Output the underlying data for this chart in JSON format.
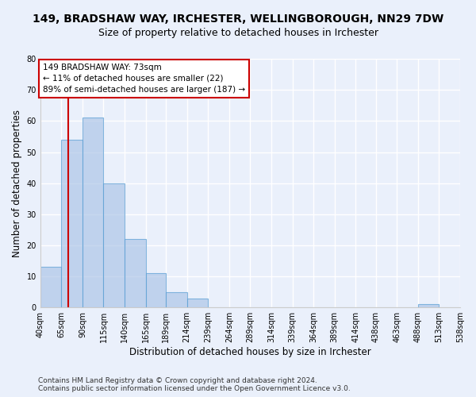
{
  "title": "149, BRADSHAW WAY, IRCHESTER, WELLINGBOROUGH, NN29 7DW",
  "subtitle": "Size of property relative to detached houses in Irchester",
  "xlabel": "Distribution of detached houses by size in Irchester",
  "ylabel": "Number of detached properties",
  "bin_edges": [
    40,
    65,
    90,
    115,
    140,
    165,
    189,
    214,
    239,
    264,
    289,
    314,
    339,
    364,
    389,
    414,
    438,
    463,
    488,
    513,
    538
  ],
  "bar_heights": [
    13,
    54,
    61,
    40,
    22,
    11,
    5,
    3,
    0,
    0,
    0,
    0,
    0,
    0,
    0,
    0,
    0,
    0,
    1,
    0
  ],
  "bar_color": "#aec6e8",
  "bar_edge_color": "#5a9fd4",
  "bar_alpha": 0.7,
  "property_line_x": 73,
  "property_line_color": "#cc0000",
  "ylim": [
    0,
    80
  ],
  "yticks": [
    0,
    10,
    20,
    30,
    40,
    50,
    60,
    70,
    80
  ],
  "x_tick_labels": [
    "40sqm",
    "65sqm",
    "90sqm",
    "115sqm",
    "140sqm",
    "165sqm",
    "189sqm",
    "214sqm",
    "239sqm",
    "264sqm",
    "289sqm",
    "314sqm",
    "339sqm",
    "364sqm",
    "389sqm",
    "414sqm",
    "438sqm",
    "463sqm",
    "488sqm",
    "513sqm",
    "538sqm"
  ],
  "annotation_text": "149 BRADSHAW WAY: 73sqm\n← 11% of detached houses are smaller (22)\n89% of semi-detached houses are larger (187) →",
  "annotation_box_color": "#ffffff",
  "annotation_box_edge": "#cc0000",
  "footer1": "Contains HM Land Registry data © Crown copyright and database right 2024.",
  "footer2": "Contains public sector information licensed under the Open Government Licence v3.0.",
  "bg_color": "#eaf0fb",
  "grid_color": "#ffffff",
  "title_fontsize": 10,
  "subtitle_fontsize": 9,
  "axis_fontsize": 8.5,
  "tick_fontsize": 7
}
